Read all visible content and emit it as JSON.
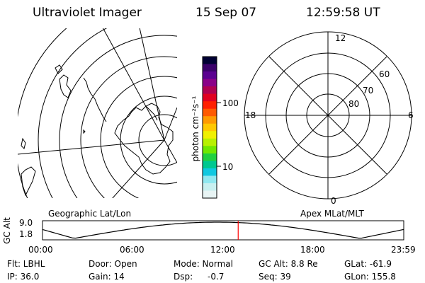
{
  "header": {
    "instrument": "Ultraviolet Imager",
    "date": "15 Sep 07",
    "time": "12:59:58 UT"
  },
  "geo_panel": {
    "label": "Geographic Lat/Lon"
  },
  "colorbar": {
    "unit_label": "photon cm⁻²s⁻¹",
    "tick_labels": [
      "100",
      "10"
    ],
    "colors": [
      "#000033",
      "#3a006a",
      "#5a0090",
      "#8a0088",
      "#b00050",
      "#e00020",
      "#ff2000",
      "#ff5a00",
      "#ff9a00",
      "#ffc800",
      "#f0f000",
      "#b8f000",
      "#70e800",
      "#20d040",
      "#00c890",
      "#10c8e0",
      "#90e8f0",
      "#c8f0f0",
      "#e8f4f4"
    ]
  },
  "polar_panel": {
    "label": "Apex MLat/MLT",
    "mlt_labels": {
      "top": "12",
      "left": "18",
      "right": "6",
      "bottom": "0"
    },
    "lat_labels": [
      "60",
      "70",
      "80"
    ]
  },
  "timeline": {
    "ylabel": "GC Alt",
    "y_ticks": [
      "9.0",
      "1.8"
    ],
    "x_ticks": [
      "00:00",
      "06:00",
      "12:00",
      "18:00",
      "23:59"
    ],
    "current_time_hours": 13.0,
    "current_time_color": "#ff0000"
  },
  "status": {
    "flt_label": "Flt: LBHL",
    "ip_label": "IP: 36.0",
    "door_label": "Door: Open",
    "gain_label": "Gain: 14",
    "mode_label": "Mode: Normal",
    "dsp_label": "Dsp:",
    "dsp_value": "-0.7",
    "gcalt_label": "GC Alt: 8.8 Re",
    "seq_label": "Seq: 39",
    "glat_label": "GLat: -61.9",
    "glon_label": "GLon: 155.8"
  }
}
